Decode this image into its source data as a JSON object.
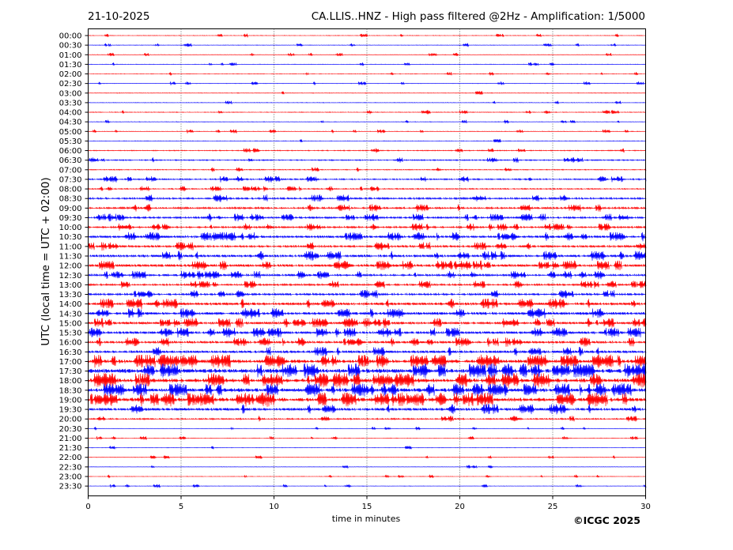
{
  "header": {
    "date": "21-10-2025",
    "title": "CA.LLIS..HNZ - High pass filtered @2Hz - Amplification: 1/5000"
  },
  "copyright": "©ICGC 2025",
  "colors": {
    "odd": "#ff0000",
    "even": "#0000ff"
  },
  "chart_data": {
    "type": "line",
    "xlabel": "time in minutes",
    "ylabel": "UTC (local time = UTC + 02:00)",
    "xlim": [
      0,
      30
    ],
    "x_ticks": [
      0,
      5,
      10,
      15,
      20,
      25,
      30
    ],
    "grid": "vertical dotted lines at 5-minute intervals",
    "traces": [
      {
        "label": "00:00",
        "activity": 0.02
      },
      {
        "label": "00:30",
        "activity": 0.02
      },
      {
        "label": "01:00",
        "activity": 0.02
      },
      {
        "label": "01:30",
        "activity": 0.02
      },
      {
        "label": "02:00",
        "activity": 0.02
      },
      {
        "label": "02:30",
        "activity": 0.02
      },
      {
        "label": "03:00",
        "activity": 0.03
      },
      {
        "label": "03:30",
        "activity": 0.03
      },
      {
        "label": "04:00",
        "activity": 0.05
      },
      {
        "label": "04:30",
        "activity": 0.03
      },
      {
        "label": "05:00",
        "activity": 0.03
      },
      {
        "label": "05:30",
        "activity": 0.03
      },
      {
        "label": "06:00",
        "activity": 0.1
      },
      {
        "label": "06:30",
        "activity": 0.15
      },
      {
        "label": "07:00",
        "activity": 0.1
      },
      {
        "label": "07:30",
        "activity": 0.2
      },
      {
        "label": "08:00",
        "activity": 0.15
      },
      {
        "label": "08:30",
        "activity": 0.3
      },
      {
        "label": "09:00",
        "activity": 0.3
      },
      {
        "label": "09:30",
        "activity": 0.3
      },
      {
        "label": "10:00",
        "activity": 0.3
      },
      {
        "label": "10:30",
        "activity": 0.4
      },
      {
        "label": "11:00",
        "activity": 0.35
      },
      {
        "label": "11:30",
        "activity": 0.45
      },
      {
        "label": "12:00",
        "activity": 0.45
      },
      {
        "label": "12:30",
        "activity": 0.35
      },
      {
        "label": "13:00",
        "activity": 0.3
      },
      {
        "label": "13:30",
        "activity": 0.35
      },
      {
        "label": "14:00",
        "activity": 0.5
      },
      {
        "label": "14:30",
        "activity": 0.5
      },
      {
        "label": "15:00",
        "activity": 0.45
      },
      {
        "label": "15:30",
        "activity": 0.45
      },
      {
        "label": "16:00",
        "activity": 0.4
      },
      {
        "label": "16:30",
        "activity": 0.45
      },
      {
        "label": "17:00",
        "activity": 0.7
      },
      {
        "label": "17:30",
        "activity": 0.8
      },
      {
        "label": "18:00",
        "activity": 0.8
      },
      {
        "label": "18:30",
        "activity": 0.7
      },
      {
        "label": "19:00",
        "activity": 0.75
      },
      {
        "label": "19:30",
        "activity": 0.5
      },
      {
        "label": "20:00",
        "activity": 0.2
      },
      {
        "label": "20:30",
        "activity": 0.01
      },
      {
        "label": "21:00",
        "activity": 0.01
      },
      {
        "label": "21:30",
        "activity": 0.01
      },
      {
        "label": "22:00",
        "activity": 0.01
      },
      {
        "label": "22:30",
        "activity": 0.01
      },
      {
        "label": "23:00",
        "activity": 0.01
      },
      {
        "label": "23:30",
        "activity": 0.01
      }
    ]
  }
}
